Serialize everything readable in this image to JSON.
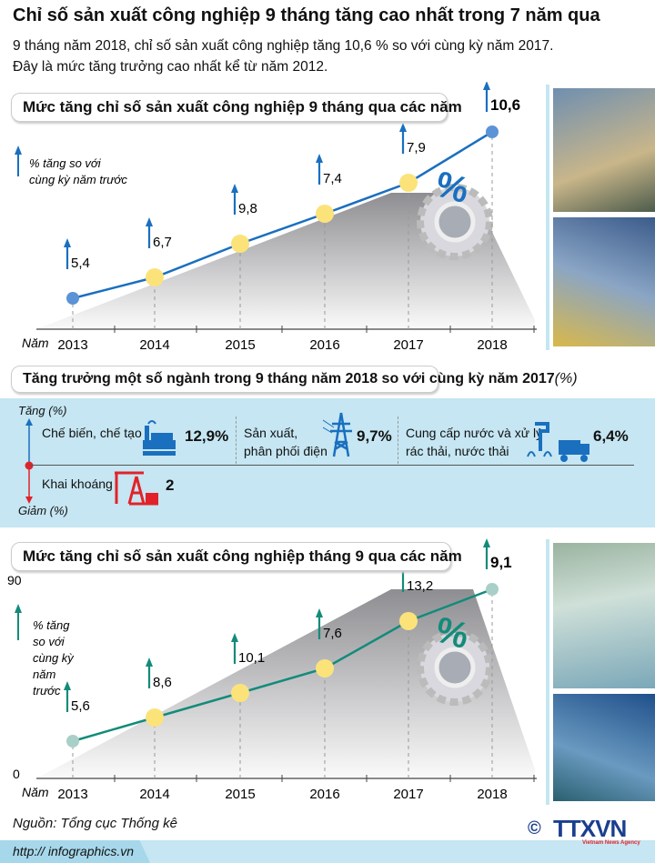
{
  "title": "Chỉ số sản xuất công nghiệp 9 tháng tăng cao nhất trong 7 năm qua",
  "subtitle_1": "9 tháng năm 2018, chỉ số sản xuất công nghiệp tăng 10,6 % so với cùng kỳ năm 2017.",
  "subtitle_2": "Đây là  mức tăng trưởng cao nhất kể từ năm 2012.",
  "chart_data": [
    {
      "type": "line",
      "title": "Mức tăng chỉ số sản xuất công nghiệp 9 tháng qua các năm",
      "ylabel": "% tăng so với cùng kỳ năm trước",
      "xlabel": "Năm",
      "x": [
        "2013",
        "2014",
        "2015",
        "2016",
        "2017",
        "2018"
      ],
      "values": [
        5.4,
        6.7,
        9.8,
        7.4,
        7.9,
        10.6
      ],
      "labels": [
        "5,4",
        "6,7",
        "9,8",
        "7,4",
        "7,9",
        "10,6"
      ],
      "line_color": "#1a6fbf"
    },
    {
      "type": "line",
      "title": "Mức tăng chỉ số sản xuất công nghiệp tháng 9 qua các năm",
      "ylabel": "% tăng so với cùng kỳ năm trước",
      "ylabel_lines": [
        "% tăng",
        "so với",
        "cùng kỳ",
        "năm",
        "trước"
      ],
      "xlabel": "Năm",
      "y_ticks": [
        "0",
        "90"
      ],
      "x": [
        "2013",
        "2014",
        "2015",
        "2016",
        "2017",
        "2018"
      ],
      "values": [
        5.6,
        8.6,
        10.1,
        7.6,
        13.2,
        9.1
      ],
      "labels": [
        "5,6",
        "8,6",
        "10,1",
        "7,6",
        "13,2",
        "9,1"
      ],
      "line_color": "#138b7a"
    }
  ],
  "sectors": {
    "title": "Tăng trưởng một số ngành trong 9 tháng năm 2018 so với cùng kỳ năm 2017",
    "title_unit": "(%)",
    "up_label": "Tăng (%)",
    "down_label": "Giảm (%)",
    "items": [
      {
        "name": "Chế biến, chế tạo",
        "value": "12,9%",
        "icon": "factory-icon",
        "color": "#1a6fbf"
      },
      {
        "name_1": "Sản xuất,",
        "name_2": "phân phối điện",
        "value": "9,7%",
        "icon": "power-tower-icon",
        "color": "#1a6fbf"
      },
      {
        "name_1": "Cung cấp nước và xử lý",
        "name_2": "rác thải, nước thải",
        "value": "6,4%",
        "icon": "water-truck-icon",
        "color": "#1a6fbf"
      },
      {
        "name": "Khai khoáng",
        "value": "2",
        "icon": "oil-pump-icon",
        "color": "#e2222a"
      }
    ]
  },
  "footer": {
    "source": "Nguồn: Tổng cục Thống kê",
    "url": "http:// infographics.vn",
    "logo": "TTXVN",
    "logo_sub": "Vietnam News Agency",
    "copyright": "©"
  }
}
